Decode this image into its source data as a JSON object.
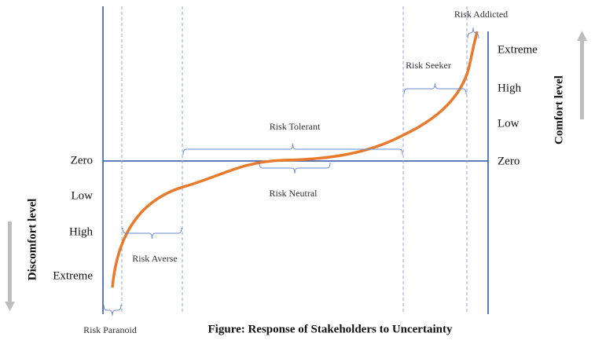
{
  "left_axis": {
    "title": "Discomfort level",
    "levels": [
      "Zero",
      "Low",
      "High",
      "Extreme"
    ]
  },
  "right_axis": {
    "title": "Comfort level",
    "levels": [
      "Extreme",
      "High",
      "Low",
      "Zero"
    ]
  },
  "zones": [
    "Risk Paranoid",
    "Risk Averse",
    "Risk Neutral",
    "Risk Tolerant",
    "Risk Seeker",
    "Risk Addicted"
  ],
  "caption": "Figure: Response of Stakeholders to Uncertainty"
}
